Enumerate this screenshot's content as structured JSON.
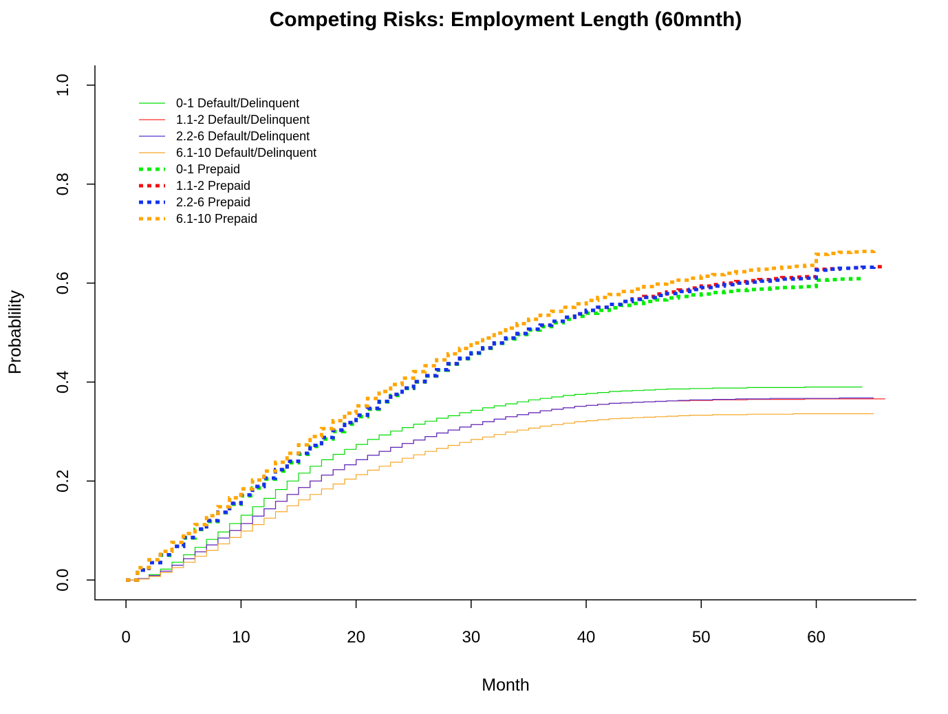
{
  "chart_data": {
    "type": "line",
    "title": "Competing Risks: Employment Length (60mnth)",
    "xlabel": "Month",
    "ylabel": "Probablility",
    "xlim": [
      -2.7,
      68.7
    ],
    "ylim": [
      -0.04,
      1.04
    ],
    "x_ticks": [
      0,
      10,
      20,
      30,
      40,
      50,
      60
    ],
    "x_tick_labels": [
      "0",
      "10",
      "20",
      "30",
      "40",
      "50",
      "60"
    ],
    "y_ticks": [
      0,
      0.2,
      0.4,
      0.6,
      0.8,
      1.0
    ],
    "y_tick_labels": [
      "0.0",
      "0.2",
      "0.4",
      "0.6",
      "0.8",
      "1.0"
    ],
    "grid": false,
    "legend_position": "top-left",
    "series": [
      {
        "name": "0-1 Default/Delinquent",
        "color": "#00dd00",
        "style": "solid",
        "x": [
          0,
          1,
          2,
          3,
          4,
          5,
          6,
          7,
          8,
          9,
          10,
          11,
          12,
          13,
          14,
          15,
          16,
          17,
          18,
          19,
          20,
          21,
          22,
          23,
          24,
          25,
          26,
          27,
          28,
          29,
          30,
          31,
          32,
          33,
          34,
          35,
          36,
          37,
          38,
          39,
          40,
          41,
          42,
          43,
          44,
          45,
          46,
          47,
          48,
          49,
          50,
          51,
          52,
          53,
          54,
          55,
          56,
          57,
          58,
          59,
          60,
          61,
          62,
          63,
          64
        ],
        "values": [
          0,
          0.003,
          0.011,
          0.022,
          0.036,
          0.051,
          0.066,
          0.082,
          0.097,
          0.114,
          0.131,
          0.148,
          0.165,
          0.183,
          0.2,
          0.216,
          0.23,
          0.243,
          0.254,
          0.264,
          0.274,
          0.284,
          0.293,
          0.301,
          0.308,
          0.315,
          0.321,
          0.327,
          0.332,
          0.338,
          0.343,
          0.348,
          0.352,
          0.356,
          0.36,
          0.364,
          0.367,
          0.37,
          0.373,
          0.375,
          0.377,
          0.379,
          0.381,
          0.382,
          0.383,
          0.384,
          0.385,
          0.386,
          0.386,
          0.387,
          0.387,
          0.388,
          0.388,
          0.388,
          0.389,
          0.389,
          0.389,
          0.389,
          0.389,
          0.39,
          0.39,
          0.39,
          0.39,
          0.39,
          0.39
        ]
      },
      {
        "name": "1.1-2 Default/Delinquent",
        "color": "#ff2a2a",
        "style": "solid",
        "x": [
          0,
          1,
          2,
          3,
          4,
          5,
          6,
          7,
          8,
          9,
          10,
          11,
          12,
          13,
          14,
          15,
          16,
          17,
          18,
          19,
          20,
          21,
          22,
          23,
          24,
          25,
          26,
          27,
          28,
          29,
          30,
          31,
          32,
          33,
          34,
          35,
          36,
          37,
          38,
          39,
          40,
          41,
          42,
          43,
          44,
          45,
          46,
          47,
          48,
          49,
          50,
          51,
          52,
          53,
          54,
          55,
          56,
          57,
          58,
          59,
          60,
          61,
          62,
          63,
          64,
          65,
          66
        ],
        "values": [
          0,
          0.003,
          0.009,
          0.018,
          0.03,
          0.043,
          0.057,
          0.071,
          0.085,
          0.1,
          0.114,
          0.129,
          0.144,
          0.159,
          0.173,
          0.187,
          0.2,
          0.212,
          0.223,
          0.233,
          0.243,
          0.252,
          0.26,
          0.268,
          0.276,
          0.283,
          0.29,
          0.297,
          0.303,
          0.309,
          0.314,
          0.32,
          0.325,
          0.33,
          0.334,
          0.338,
          0.342,
          0.345,
          0.348,
          0.351,
          0.353,
          0.355,
          0.357,
          0.358,
          0.359,
          0.36,
          0.361,
          0.362,
          0.362,
          0.363,
          0.363,
          0.364,
          0.364,
          0.364,
          0.365,
          0.365,
          0.365,
          0.365,
          0.365,
          0.366,
          0.366,
          0.366,
          0.366,
          0.366,
          0.366,
          0.366,
          0.366
        ]
      },
      {
        "name": "2.2-6 Default/Delinquent",
        "color": "#5533cc",
        "style": "solid",
        "x": [
          0,
          1,
          2,
          3,
          4,
          5,
          6,
          7,
          8,
          9,
          10,
          11,
          12,
          13,
          14,
          15,
          16,
          17,
          18,
          19,
          20,
          21,
          22,
          23,
          24,
          25,
          26,
          27,
          28,
          29,
          30,
          31,
          32,
          33,
          34,
          35,
          36,
          37,
          38,
          39,
          40,
          41,
          42,
          43,
          44,
          45,
          46,
          47,
          48,
          49,
          50,
          51,
          52,
          53,
          54,
          55,
          56,
          57,
          58,
          59,
          60,
          61,
          62,
          63,
          64,
          65
        ],
        "values": [
          0,
          0.003,
          0.009,
          0.018,
          0.03,
          0.043,
          0.057,
          0.071,
          0.085,
          0.1,
          0.114,
          0.129,
          0.144,
          0.159,
          0.173,
          0.187,
          0.2,
          0.212,
          0.223,
          0.233,
          0.243,
          0.252,
          0.26,
          0.268,
          0.276,
          0.283,
          0.29,
          0.297,
          0.303,
          0.309,
          0.314,
          0.32,
          0.325,
          0.33,
          0.334,
          0.338,
          0.342,
          0.345,
          0.348,
          0.351,
          0.353,
          0.355,
          0.357,
          0.358,
          0.359,
          0.36,
          0.361,
          0.362,
          0.363,
          0.364,
          0.364,
          0.365,
          0.365,
          0.366,
          0.366,
          0.366,
          0.367,
          0.367,
          0.367,
          0.367,
          0.367,
          0.367,
          0.368,
          0.368,
          0.368,
          0.368
        ]
      },
      {
        "name": "6.1-10 Default/Delinquent",
        "color": "#f5a623",
        "style": "solid",
        "x": [
          0,
          1,
          2,
          3,
          4,
          5,
          6,
          7,
          8,
          9,
          10,
          11,
          12,
          13,
          14,
          15,
          16,
          17,
          18,
          19,
          20,
          21,
          22,
          23,
          24,
          25,
          26,
          27,
          28,
          29,
          30,
          31,
          32,
          33,
          34,
          35,
          36,
          37,
          38,
          39,
          40,
          41,
          42,
          43,
          44,
          45,
          46,
          47,
          48,
          49,
          50,
          51,
          52,
          53,
          54,
          55,
          56,
          57,
          58,
          59,
          60,
          61,
          62,
          63,
          64,
          65
        ],
        "values": [
          0,
          0.002,
          0.007,
          0.015,
          0.025,
          0.036,
          0.048,
          0.06,
          0.073,
          0.086,
          0.099,
          0.112,
          0.125,
          0.138,
          0.15,
          0.162,
          0.173,
          0.184,
          0.194,
          0.204,
          0.213,
          0.222,
          0.23,
          0.238,
          0.246,
          0.253,
          0.26,
          0.266,
          0.272,
          0.278,
          0.284,
          0.289,
          0.294,
          0.299,
          0.303,
          0.307,
          0.311,
          0.314,
          0.317,
          0.32,
          0.322,
          0.324,
          0.326,
          0.327,
          0.328,
          0.329,
          0.33,
          0.331,
          0.332,
          0.333,
          0.333,
          0.334,
          0.334,
          0.334,
          0.335,
          0.335,
          0.335,
          0.335,
          0.336,
          0.336,
          0.336,
          0.336,
          0.336,
          0.336,
          0.336,
          0.336
        ]
      },
      {
        "name": "0-1 Prepaid",
        "color": "#00ee00",
        "style": "dotted",
        "x": [
          0,
          1,
          2,
          3,
          4,
          5,
          6,
          7,
          8,
          9,
          10,
          11,
          12,
          13,
          14,
          15,
          16,
          17,
          18,
          19,
          20,
          21,
          22,
          23,
          24,
          25,
          26,
          27,
          28,
          29,
          30,
          31,
          32,
          33,
          34,
          35,
          36,
          37,
          38,
          39,
          40,
          41,
          42,
          43,
          44,
          45,
          46,
          47,
          48,
          49,
          50,
          51,
          52,
          53,
          54,
          55,
          56,
          57,
          58,
          59,
          60,
          61,
          62,
          63,
          64
        ],
        "values": [
          0,
          0.02,
          0.035,
          0.05,
          0.068,
          0.085,
          0.102,
          0.118,
          0.136,
          0.153,
          0.17,
          0.186,
          0.204,
          0.22,
          0.237,
          0.254,
          0.27,
          0.285,
          0.3,
          0.315,
          0.33,
          0.345,
          0.36,
          0.373,
          0.387,
          0.4,
          0.412,
          0.424,
          0.436,
          0.447,
          0.458,
          0.468,
          0.478,
          0.487,
          0.496,
          0.505,
          0.512,
          0.52,
          0.527,
          0.533,
          0.539,
          0.545,
          0.55,
          0.555,
          0.559,
          0.563,
          0.566,
          0.57,
          0.573,
          0.576,
          0.578,
          0.581,
          0.583,
          0.585,
          0.587,
          0.588,
          0.59,
          0.591,
          0.592,
          0.593,
          0.606,
          0.607,
          0.608,
          0.609,
          0.61
        ]
      },
      {
        "name": "1.1-2 Prepaid",
        "color": "#ee1111",
        "style": "dotted",
        "x": [
          0,
          1,
          2,
          3,
          4,
          5,
          6,
          7,
          8,
          9,
          10,
          11,
          12,
          13,
          14,
          15,
          16,
          17,
          18,
          19,
          20,
          21,
          22,
          23,
          24,
          25,
          26,
          27,
          28,
          29,
          30,
          31,
          32,
          33,
          34,
          35,
          36,
          37,
          38,
          39,
          40,
          41,
          42,
          43,
          44,
          45,
          46,
          47,
          48,
          49,
          50,
          51,
          52,
          53,
          54,
          55,
          56,
          57,
          58,
          59,
          60,
          61,
          62,
          63,
          64,
          65,
          66
        ],
        "values": [
          0,
          0.02,
          0.035,
          0.051,
          0.068,
          0.086,
          0.103,
          0.12,
          0.137,
          0.155,
          0.172,
          0.189,
          0.206,
          0.223,
          0.24,
          0.256,
          0.272,
          0.288,
          0.303,
          0.318,
          0.333,
          0.347,
          0.361,
          0.375,
          0.388,
          0.401,
          0.413,
          0.425,
          0.437,
          0.448,
          0.459,
          0.469,
          0.479,
          0.489,
          0.498,
          0.507,
          0.515,
          0.523,
          0.531,
          0.538,
          0.545,
          0.551,
          0.557,
          0.563,
          0.568,
          0.573,
          0.578,
          0.582,
          0.586,
          0.59,
          0.594,
          0.597,
          0.6,
          0.603,
          0.605,
          0.607,
          0.609,
          0.611,
          0.612,
          0.613,
          0.628,
          0.629,
          0.63,
          0.631,
          0.632,
          0.633,
          0.633
        ]
      },
      {
        "name": "2.2-6 Prepaid",
        "color": "#1133ee",
        "style": "dotted",
        "x": [
          0,
          1,
          2,
          3,
          4,
          5,
          6,
          7,
          8,
          9,
          10,
          11,
          12,
          13,
          14,
          15,
          16,
          17,
          18,
          19,
          20,
          21,
          22,
          23,
          24,
          25,
          26,
          27,
          28,
          29,
          30,
          31,
          32,
          33,
          34,
          35,
          36,
          37,
          38,
          39,
          40,
          41,
          42,
          43,
          44,
          45,
          46,
          47,
          48,
          49,
          50,
          51,
          52,
          53,
          54,
          55,
          56,
          57,
          58,
          59,
          60,
          61,
          62,
          63,
          64,
          65
        ],
        "values": [
          0,
          0.02,
          0.035,
          0.051,
          0.068,
          0.086,
          0.103,
          0.12,
          0.137,
          0.155,
          0.172,
          0.189,
          0.206,
          0.223,
          0.24,
          0.256,
          0.272,
          0.288,
          0.303,
          0.318,
          0.333,
          0.347,
          0.361,
          0.375,
          0.388,
          0.401,
          0.413,
          0.425,
          0.437,
          0.448,
          0.459,
          0.469,
          0.479,
          0.489,
          0.498,
          0.507,
          0.515,
          0.523,
          0.531,
          0.538,
          0.545,
          0.551,
          0.557,
          0.563,
          0.567,
          0.571,
          0.575,
          0.579,
          0.583,
          0.587,
          0.591,
          0.594,
          0.597,
          0.6,
          0.602,
          0.604,
          0.606,
          0.608,
          0.609,
          0.61,
          0.626,
          0.628,
          0.63,
          0.631,
          0.632,
          0.633
        ]
      },
      {
        "name": "6.1-10 Prepaid",
        "color": "#ffa500",
        "style": "dotted",
        "x": [
          0,
          1,
          2,
          3,
          4,
          5,
          6,
          7,
          8,
          9,
          10,
          11,
          12,
          13,
          14,
          15,
          16,
          17,
          18,
          19,
          20,
          21,
          22,
          23,
          24,
          25,
          26,
          27,
          28,
          29,
          30,
          31,
          32,
          33,
          34,
          35,
          36,
          37,
          38,
          39,
          40,
          41,
          42,
          43,
          44,
          45,
          46,
          47,
          48,
          49,
          50,
          51,
          52,
          53,
          54,
          55,
          56,
          57,
          58,
          59,
          60,
          61,
          62,
          63,
          64,
          65
        ],
        "values": [
          0,
          0.025,
          0.041,
          0.058,
          0.076,
          0.094,
          0.112,
          0.13,
          0.148,
          0.166,
          0.184,
          0.202,
          0.22,
          0.238,
          0.256,
          0.273,
          0.29,
          0.306,
          0.322,
          0.337,
          0.352,
          0.367,
          0.381,
          0.395,
          0.408,
          0.421,
          0.433,
          0.445,
          0.457,
          0.468,
          0.479,
          0.489,
          0.499,
          0.509,
          0.518,
          0.527,
          0.535,
          0.543,
          0.551,
          0.558,
          0.565,
          0.571,
          0.577,
          0.583,
          0.588,
          0.593,
          0.598,
          0.602,
          0.606,
          0.61,
          0.614,
          0.617,
          0.62,
          0.623,
          0.626,
          0.628,
          0.63,
          0.632,
          0.634,
          0.636,
          0.658,
          0.66,
          0.662,
          0.663,
          0.664,
          0.665
        ]
      }
    ]
  }
}
